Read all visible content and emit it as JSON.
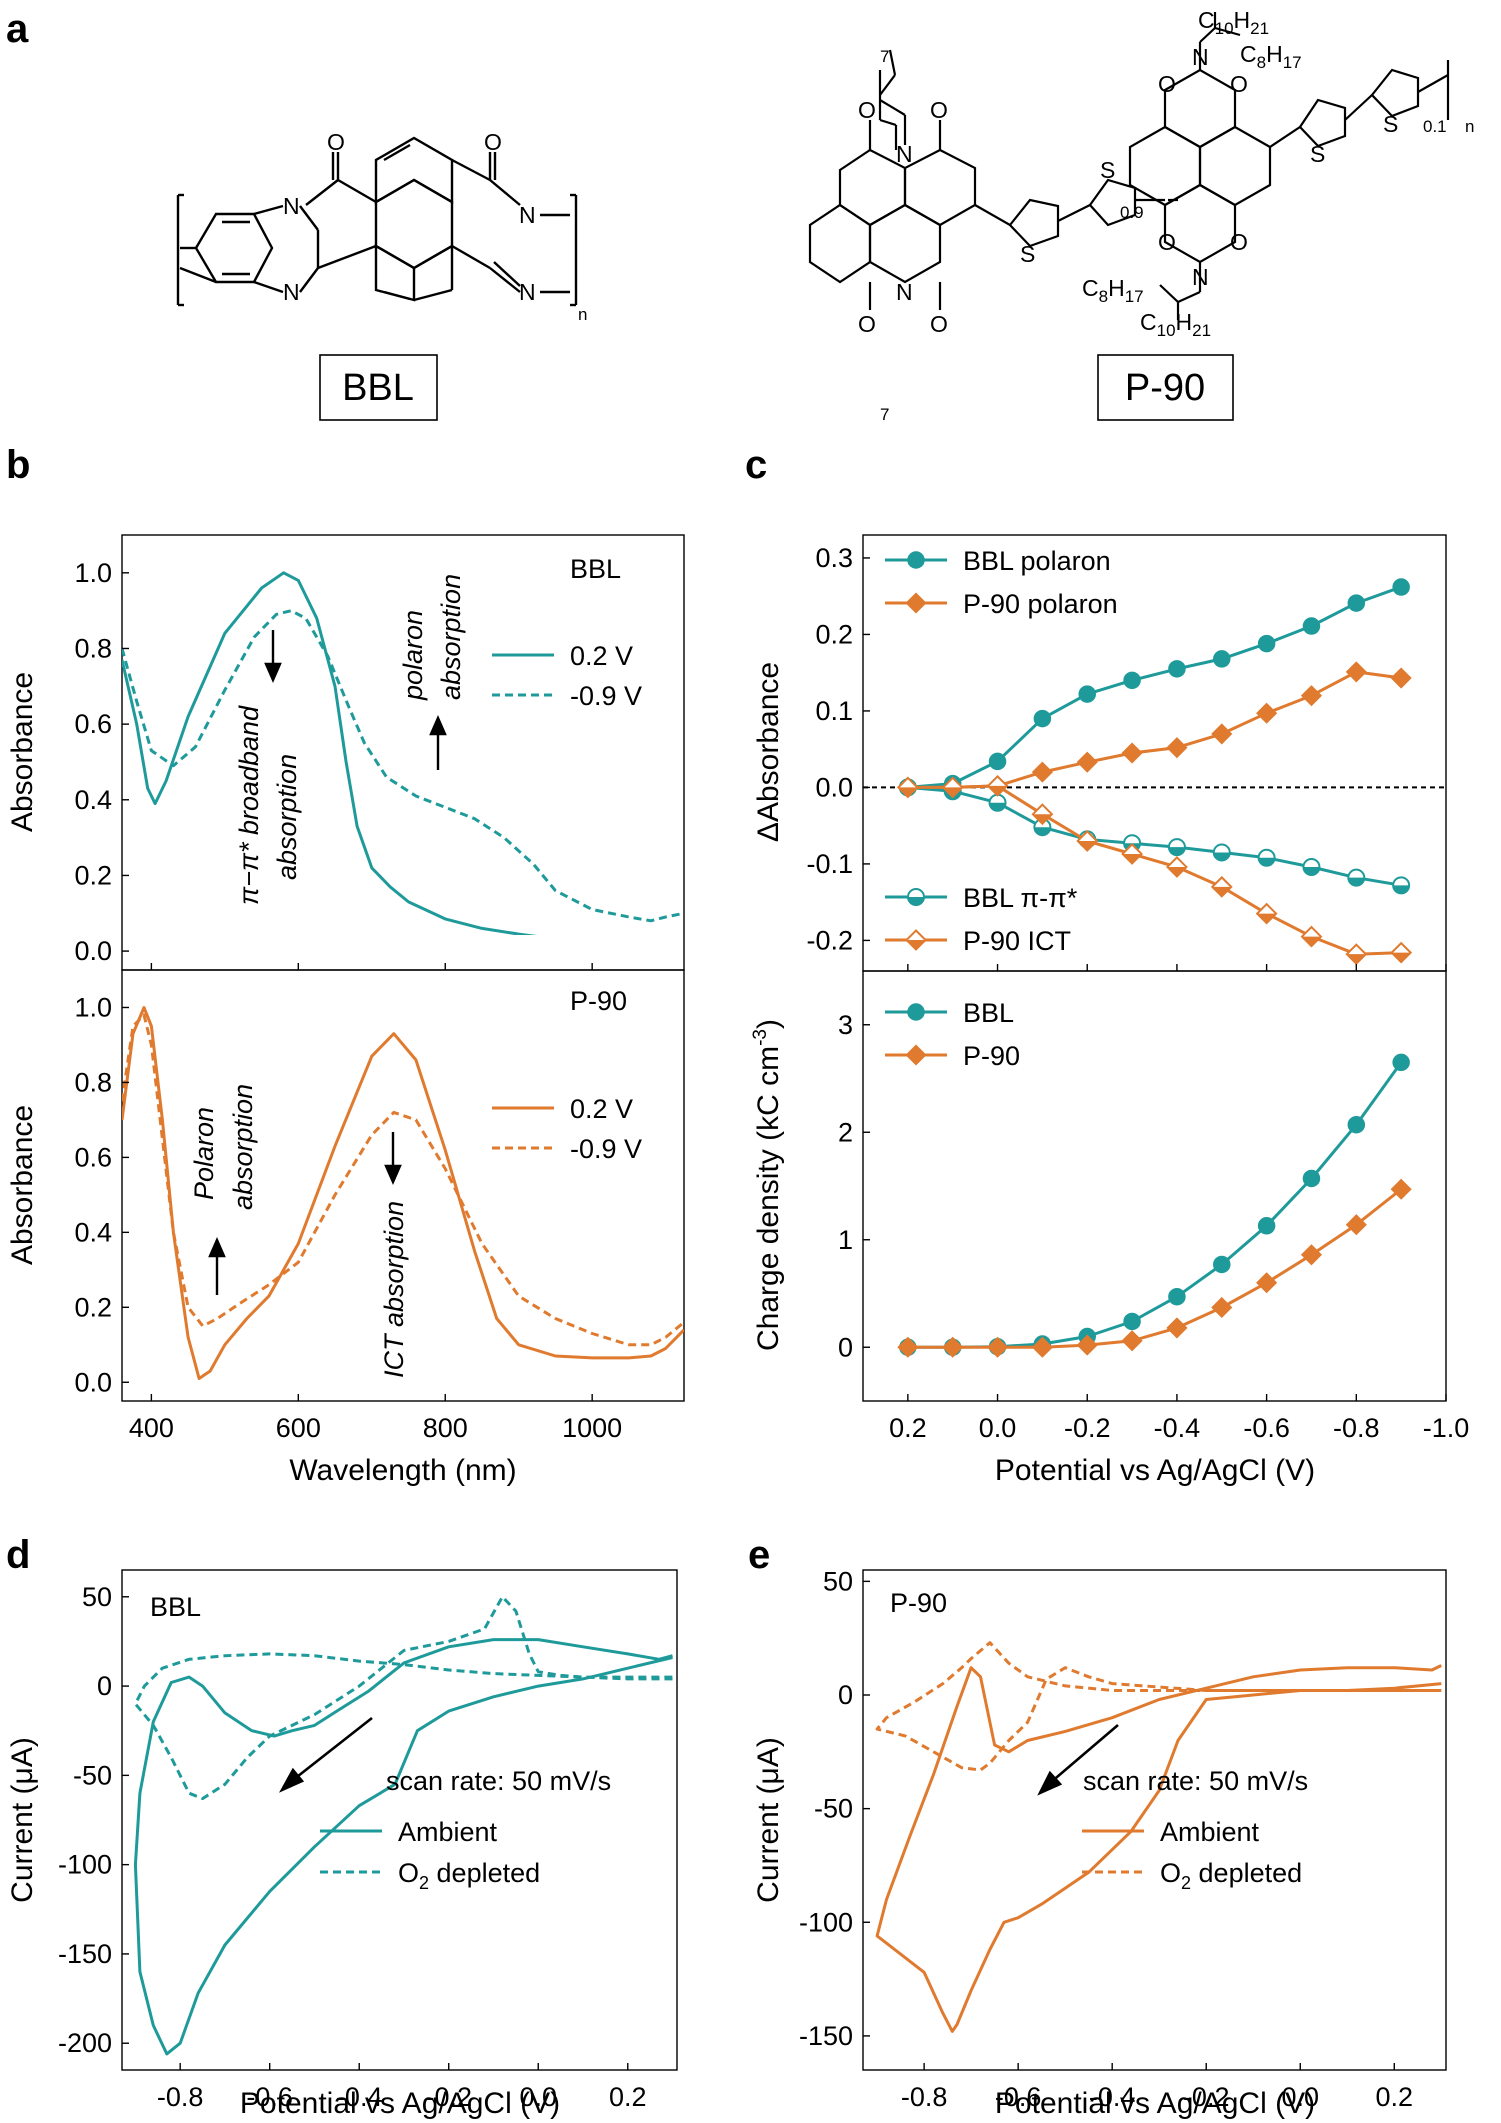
{
  "panels": {
    "a": "a",
    "b": "b",
    "c": "c",
    "d": "d",
    "e": "e"
  },
  "colors": {
    "teal": "#1f9a9a",
    "orange": "#e07a2e",
    "black": "#000000"
  },
  "structures": {
    "bbl_label": "BBL",
    "p90_label": "P-90",
    "atoms": {
      "N": "N",
      "O": "O",
      "S": "S"
    },
    "sub_n": "n",
    "sub_09": "0.9",
    "sub_01": "0.1",
    "sub_7": "7",
    "c10": "C",
    "c10_sub": "10",
    "h21": "H",
    "h21_sub": "21",
    "c8": "C",
    "c8_sub": "8",
    "h17": "H",
    "h17_sub": "17"
  },
  "chart_data": [
    {
      "id": "b_top",
      "type": "line",
      "title": "BBL",
      "xlabel": "",
      "ylabel": "Absorbance",
      "xlim": [
        360,
        1125
      ],
      "ylim": [
        -0.05,
        1.1
      ],
      "yticks": [
        "0.0",
        "0.2",
        "0.4",
        "0.6",
        "0.8",
        "1.0"
      ],
      "series": [
        {
          "name": "0.2 V",
          "style": "solid",
          "color": "#1f9a9a",
          "x": [
            360,
            380,
            395,
            405,
            420,
            450,
            500,
            550,
            580,
            600,
            625,
            650,
            665,
            680,
            700,
            725,
            750,
            800,
            850,
            900,
            950,
            1000,
            1050,
            1100,
            1125
          ],
          "y": [
            0.77,
            0.6,
            0.43,
            0.39,
            0.45,
            0.62,
            0.84,
            0.96,
            1.0,
            0.98,
            0.88,
            0.7,
            0.5,
            0.33,
            0.22,
            0.17,
            0.13,
            0.085,
            0.06,
            0.045,
            0.032,
            0.02,
            0.01,
            0.005,
            0.0
          ]
        },
        {
          "name": "-0.9 V",
          "style": "dashed",
          "color": "#1f9a9a",
          "x": [
            360,
            380,
            400,
            430,
            460,
            500,
            540,
            570,
            590,
            610,
            640,
            670,
            690,
            720,
            760,
            800,
            840,
            880,
            920,
            950,
            1000,
            1050,
            1080,
            1100,
            1125
          ],
          "y": [
            0.8,
            0.66,
            0.53,
            0.49,
            0.54,
            0.69,
            0.83,
            0.89,
            0.9,
            0.88,
            0.78,
            0.64,
            0.55,
            0.46,
            0.41,
            0.38,
            0.35,
            0.3,
            0.23,
            0.16,
            0.11,
            0.09,
            0.08,
            0.09,
            0.1
          ]
        }
      ]
    },
    {
      "id": "b_bottom",
      "type": "line",
      "title": "P-90",
      "xlabel": "Wavelength (nm)",
      "ylabel": "Absorbance",
      "xlim": [
        360,
        1125
      ],
      "ylim": [
        -0.05,
        1.1
      ],
      "xticks": [
        "400",
        "600",
        "800",
        "1000"
      ],
      "yticks": [
        "0.0",
        "0.2",
        "0.4",
        "0.6",
        "0.8",
        "1.0"
      ],
      "series": [
        {
          "name": "0.2 V",
          "style": "solid",
          "color": "#e07a2e",
          "x": [
            360,
            375,
            390,
            400,
            415,
            430,
            450,
            465,
            480,
            500,
            530,
            560,
            600,
            650,
            700,
            730,
            760,
            800,
            840,
            870,
            900,
            950,
            1000,
            1050,
            1080,
            1100,
            1125
          ],
          "y": [
            0.7,
            0.93,
            1.0,
            0.95,
            0.7,
            0.4,
            0.12,
            0.01,
            0.03,
            0.1,
            0.17,
            0.23,
            0.37,
            0.63,
            0.87,
            0.93,
            0.86,
            0.62,
            0.35,
            0.17,
            0.1,
            0.07,
            0.065,
            0.065,
            0.07,
            0.09,
            0.14
          ]
        },
        {
          "name": "-0.9 V",
          "style": "dashed",
          "color": "#e07a2e",
          "x": [
            360,
            375,
            390,
            400,
            415,
            430,
            450,
            470,
            490,
            520,
            560,
            600,
            650,
            700,
            730,
            760,
            800,
            850,
            900,
            950,
            1000,
            1050,
            1080,
            1100,
            1125
          ],
          "y": [
            0.75,
            0.95,
            0.98,
            0.9,
            0.65,
            0.4,
            0.2,
            0.15,
            0.17,
            0.21,
            0.26,
            0.32,
            0.5,
            0.66,
            0.72,
            0.7,
            0.57,
            0.37,
            0.23,
            0.17,
            0.13,
            0.1,
            0.1,
            0.12,
            0.16
          ]
        }
      ]
    },
    {
      "id": "c_top",
      "type": "line",
      "xlabel": "",
      "ylabel": "ΔAbsorbance",
      "xlim": [
        0.3,
        -1.0
      ],
      "ylim": [
        -0.24,
        0.33
      ],
      "yticks": [
        "-0.2",
        "-0.1",
        "0.0",
        "0.1",
        "0.2",
        "0.3"
      ],
      "series": [
        {
          "name": "BBL polaron",
          "marker": "circle-filled",
          "color": "#1f9a9a",
          "x": [
            0.2,
            0.1,
            0.0,
            -0.1,
            -0.2,
            -0.3,
            -0.4,
            -0.5,
            -0.6,
            -0.7,
            -0.8,
            -0.9
          ],
          "y": [
            0.0,
            0.005,
            0.034,
            0.09,
            0.122,
            0.14,
            0.155,
            0.168,
            0.188,
            0.211,
            0.241,
            0.262
          ]
        },
        {
          "name": "P-90 polaron",
          "marker": "diamond-filled",
          "color": "#e07a2e",
          "x": [
            0.2,
            0.1,
            0.0,
            -0.1,
            -0.2,
            -0.3,
            -0.4,
            -0.5,
            -0.6,
            -0.7,
            -0.8,
            -0.9
          ],
          "y": [
            0.0,
            0.0,
            0.002,
            0.02,
            0.033,
            0.045,
            0.052,
            0.07,
            0.097,
            0.12,
            0.151,
            0.143
          ]
        },
        {
          "name": "BBL π-π*",
          "marker": "circle-half",
          "color": "#1f9a9a",
          "x": [
            0.2,
            0.1,
            0.0,
            -0.1,
            -0.2,
            -0.3,
            -0.4,
            -0.5,
            -0.6,
            -0.7,
            -0.8,
            -0.9
          ],
          "y": [
            0.0,
            -0.005,
            -0.02,
            -0.052,
            -0.068,
            -0.073,
            -0.078,
            -0.085,
            -0.092,
            -0.104,
            -0.118,
            -0.128
          ]
        },
        {
          "name": "P-90 ICT",
          "marker": "diamond-half",
          "color": "#e07a2e",
          "x": [
            0.2,
            0.1,
            0.0,
            -0.1,
            -0.2,
            -0.3,
            -0.4,
            -0.5,
            -0.6,
            -0.7,
            -0.8,
            -0.9
          ],
          "y": [
            0.0,
            0.0,
            0.002,
            -0.035,
            -0.07,
            -0.087,
            -0.104,
            -0.13,
            -0.165,
            -0.195,
            -0.218,
            -0.216
          ]
        }
      ]
    },
    {
      "id": "c_bottom",
      "type": "line",
      "xlabel": "Potential vs Ag/AgCl (V)",
      "ylabel": "Charge density (kC cm",
      "ylabel_sup": "-3",
      "ylabel_end": ")",
      "xlim": [
        0.3,
        -1.0
      ],
      "ylim": [
        -0.5,
        3.5
      ],
      "xticks": [
        "0.2",
        "0.0",
        "-0.2",
        "-0.4",
        "-0.6",
        "-0.8",
        "-1.0"
      ],
      "yticks": [
        "0",
        "1",
        "2",
        "3"
      ],
      "series": [
        {
          "name": "BBL",
          "marker": "circle-filled",
          "color": "#1f9a9a",
          "x": [
            0.2,
            0.1,
            0.0,
            -0.1,
            -0.2,
            -0.3,
            -0.4,
            -0.5,
            -0.6,
            -0.7,
            -0.8,
            -0.9
          ],
          "y": [
            0.0,
            0.0,
            0.005,
            0.03,
            0.1,
            0.24,
            0.47,
            0.77,
            1.13,
            1.57,
            2.07,
            2.65
          ]
        },
        {
          "name": "P-90",
          "marker": "diamond-filled",
          "color": "#e07a2e",
          "x": [
            0.2,
            0.1,
            0.0,
            -0.1,
            -0.2,
            -0.3,
            -0.4,
            -0.5,
            -0.6,
            -0.7,
            -0.8,
            -0.9
          ],
          "y": [
            0.0,
            0.0,
            0.0,
            0.0,
            0.02,
            0.06,
            0.18,
            0.37,
            0.6,
            0.86,
            1.14,
            1.47
          ]
        }
      ]
    },
    {
      "id": "d",
      "type": "line",
      "title": "BBL",
      "xlabel": "Potential vs Ag/AgCl (V)",
      "ylabel": "Current (μA)",
      "xlim": [
        -0.93,
        0.31
      ],
      "ylim": [
        -215,
        65
      ],
      "xticks": [
        "-0.8",
        "-0.6",
        "-0.4",
        "-0.2",
        "0.0",
        "0.2"
      ],
      "yticks": [
        "-200",
        "-150",
        "-100",
        "-50",
        "0",
        "50"
      ],
      "annotation": "scan rate: 50 mV/s",
      "series": [
        {
          "name": "Ambient",
          "style": "solid",
          "color": "#1f9a9a",
          "x": [
            0.3,
            0.2,
            0.1,
            0.0,
            -0.1,
            -0.2,
            -0.27,
            -0.32,
            -0.4,
            -0.5,
            -0.6,
            -0.7,
            -0.76,
            -0.8,
            -0.83,
            -0.86,
            -0.89,
            -0.9,
            -0.89,
            -0.86,
            -0.82,
            -0.78,
            -0.75,
            -0.7,
            -0.64,
            -0.59,
            -0.55,
            -0.5,
            -0.45,
            -0.38,
            -0.3,
            -0.2,
            -0.1,
            0.0,
            0.1,
            0.2,
            0.27,
            0.3
          ],
          "y": [
            16,
            10,
            4,
            0,
            -6,
            -14,
            -25,
            -55,
            -67,
            -90,
            -115,
            -145,
            -172,
            -200,
            -206,
            -190,
            -160,
            -100,
            -60,
            -20,
            2,
            5,
            0,
            -15,
            -25,
            -28,
            -25,
            -22,
            -14,
            -3,
            13,
            22,
            26,
            26,
            22,
            18,
            15,
            17
          ]
        },
        {
          "name": "O2 depleted",
          "style": "dashed",
          "color": "#1f9a9a",
          "x": [
            0.3,
            0.2,
            0.1,
            0.05,
            0.0,
            -0.02,
            -0.05,
            -0.08,
            -0.12,
            -0.2,
            -0.3,
            -0.4,
            -0.5,
            -0.6,
            -0.65,
            -0.7,
            -0.75,
            -0.78,
            -0.82,
            -0.86,
            -0.9,
            -0.88,
            -0.84,
            -0.78,
            -0.7,
            -0.6,
            -0.5,
            -0.4,
            -0.3,
            -0.2,
            -0.1,
            0.0,
            0.1,
            0.2,
            0.3
          ],
          "y": [
            4,
            4,
            5,
            6,
            8,
            18,
            42,
            50,
            32,
            25,
            20,
            0,
            -16,
            -28,
            -40,
            -55,
            -63,
            -60,
            -40,
            -22,
            -10,
            0,
            10,
            15,
            17,
            18,
            17,
            14,
            12,
            9,
            7,
            6,
            5,
            5,
            5
          ]
        }
      ]
    },
    {
      "id": "e",
      "type": "line",
      "title": "P-90",
      "xlabel": "Potential vs Ag/AgCl (V)",
      "ylabel": "Current (μA)",
      "xlim": [
        -0.93,
        0.31
      ],
      "ylim": [
        -165,
        55
      ],
      "xticks": [
        "-0.8",
        "-0.6",
        "-0.4",
        "-0.2",
        "0.0",
        "0.2"
      ],
      "yticks": [
        "-150",
        "-100",
        "-50",
        "0",
        "50"
      ],
      "annotation": "scan rate: 50 mV/s",
      "series": [
        {
          "name": "Ambient",
          "style": "solid",
          "color": "#e07a2e",
          "x": [
            0.3,
            0.2,
            0.1,
            0.0,
            -0.1,
            -0.2,
            -0.26,
            -0.3,
            -0.36,
            -0.45,
            -0.55,
            -0.6,
            -0.63,
            -0.66,
            -0.7,
            -0.73,
            -0.74,
            -0.76,
            -0.8,
            -0.9,
            -0.88,
            -0.83,
            -0.78,
            -0.73,
            -0.7,
            -0.68,
            -0.65,
            -0.62,
            -0.58,
            -0.5,
            -0.4,
            -0.3,
            -0.2,
            -0.1,
            0.0,
            0.1,
            0.2,
            0.28,
            0.3
          ],
          "y": [
            5,
            3,
            2,
            2,
            0,
            -2,
            -20,
            -42,
            -60,
            -78,
            -92,
            -98,
            -100,
            -112,
            -130,
            -145,
            -148,
            -140,
            -122,
            -106,
            -90,
            -62,
            -35,
            -5,
            12,
            8,
            -22,
            -25,
            -20,
            -16,
            -10,
            -2,
            3,
            8,
            11,
            12,
            12,
            11,
            13
          ]
        },
        {
          "name": "O2 depleted",
          "style": "dashed",
          "color": "#e07a2e",
          "x": [
            0.3,
            0.2,
            0.0,
            -0.2,
            -0.4,
            -0.45,
            -0.5,
            -0.54,
            -0.58,
            -0.62,
            -0.66,
            -0.68,
            -0.72,
            -0.78,
            -0.84,
            -0.9,
            -0.88,
            -0.82,
            -0.76,
            -0.72,
            -0.7,
            -0.66,
            -0.62,
            -0.58,
            -0.5,
            -0.4,
            -0.2,
            0.0,
            0.2,
            0.3
          ],
          "y": [
            2,
            2,
            2,
            2,
            5,
            8,
            12,
            7,
            -12,
            -20,
            -30,
            -33,
            -32,
            -25,
            -18,
            -15,
            -10,
            -3,
            5,
            12,
            16,
            23,
            14,
            8,
            4,
            2,
            2,
            2,
            2,
            2
          ]
        }
      ]
    }
  ],
  "annotations": {
    "b_top_pipi": "π−π* broadband",
    "b_top_pipi2": "absorption",
    "b_top_pol": "polaron",
    "b_top_pol2": "absorption",
    "b_bot_pol": "Polaron",
    "b_bot_pol2": "absorption",
    "b_bot_ict": "ICT absorption",
    "o2_sub": "2",
    "o2_prefix": "O",
    "o2_suffix": " depleted"
  }
}
